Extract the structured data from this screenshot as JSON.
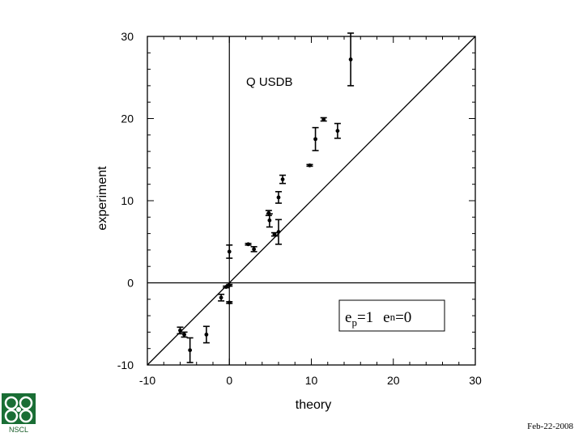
{
  "chart_data": {
    "type": "scatter",
    "xlabel": "theory",
    "ylabel": "experiment",
    "xlim": [
      -10,
      30
    ],
    "ylim": [
      -10,
      30
    ],
    "xticks": [
      -10,
      0,
      10,
      20,
      30
    ],
    "yticks": [
      -10,
      0,
      10,
      20,
      30
    ],
    "annotation": "Q  USDB",
    "equation": {
      "p_base": "e",
      "p_sub": "p",
      "p_val": "=1",
      "n_base": "e",
      "n_sub": "n",
      "n_val": "=0"
    },
    "reference_lines": [
      "y = x",
      "x = 0",
      "y = 0"
    ],
    "points": [
      {
        "x": -6.0,
        "y": -5.8,
        "err": 0.4
      },
      {
        "x": -5.5,
        "y": -6.3,
        "err": 0.3
      },
      {
        "x": -4.8,
        "y": -8.2,
        "err": 1.5
      },
      {
        "x": -2.8,
        "y": -6.3,
        "err": 1.0
      },
      {
        "x": -1.0,
        "y": -1.8,
        "err": 0.4
      },
      {
        "x": -0.4,
        "y": -0.5,
        "err": 0.1
      },
      {
        "x": 0.0,
        "y": -0.3,
        "err": 0.1
      },
      {
        "x": 0.0,
        "y": -2.4,
        "err": 0.1
      },
      {
        "x": 0.0,
        "y": 3.8,
        "err": 0.8
      },
      {
        "x": 2.3,
        "y": 4.7,
        "err": 0.1
      },
      {
        "x": 3.0,
        "y": 4.1,
        "err": 0.3
      },
      {
        "x": 4.8,
        "y": 8.5,
        "err": 0.3
      },
      {
        "x": 4.9,
        "y": 7.6,
        "err": 0.8
      },
      {
        "x": 5.5,
        "y": 5.9,
        "err": 0.2
      },
      {
        "x": 6.0,
        "y": 10.4,
        "err": 0.7
      },
      {
        "x": 6.0,
        "y": 6.2,
        "err": 1.5
      },
      {
        "x": 6.5,
        "y": 12.6,
        "err": 0.5
      },
      {
        "x": 9.8,
        "y": 14.3,
        "err": 0.1
      },
      {
        "x": 10.5,
        "y": 17.5,
        "err": 1.4
      },
      {
        "x": 11.5,
        "y": 19.9,
        "err": 0.2
      },
      {
        "x": 13.2,
        "y": 18.5,
        "err": 0.9
      },
      {
        "x": 14.8,
        "y": 27.2,
        "err": 3.2
      }
    ]
  },
  "footer": {
    "logo_text": "NSCL",
    "date": "Feb-22-2008"
  },
  "colors": {
    "logo_green": "#1a6e35"
  }
}
